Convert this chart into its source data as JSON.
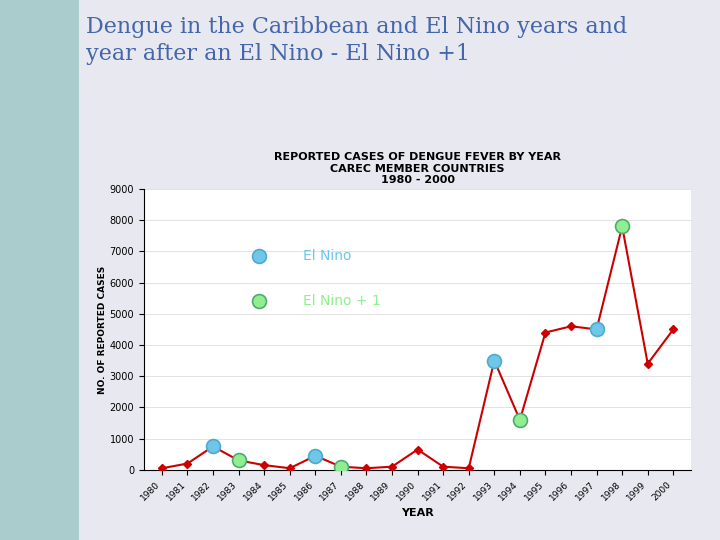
{
  "title_main": "Dengue in the Caribbean and El Nino years and\nyear after an El Nino - El Nino +1",
  "chart_title_line1": "REPORTED CASES OF DENGUE FEVER BY YEAR",
  "chart_title_line2": "CAREC MEMBER COUNTRIES",
  "chart_title_line3": "1980 - 2000",
  "xlabel": "YEAR",
  "ylabel": "NO. OF REPORTED CASES",
  "years": [
    1980,
    1981,
    1982,
    1983,
    1984,
    1985,
    1986,
    1987,
    1988,
    1989,
    1990,
    1991,
    1992,
    1993,
    1994,
    1995,
    1996,
    1997,
    1998,
    1999,
    2000
  ],
  "values": [
    50,
    200,
    750,
    300,
    150,
    50,
    450,
    100,
    50,
    100,
    650,
    100,
    50,
    3500,
    1600,
    4400,
    4600,
    4500,
    7800,
    3400,
    4500
  ],
  "el_nino_years": [
    1982,
    1986,
    1993,
    1997
  ],
  "el_nino_plus1_years": [
    1983,
    1987,
    1994,
    1998
  ],
  "el_nino_color": "#6EC6E8",
  "el_nino_plus1_color": "#90EE90",
  "el_nino_edge_color": "#50AACC",
  "el_nino_plus1_edge_color": "#50AA70",
  "line_color": "#CC0000",
  "dot_color": "#CC0000",
  "background_color": "#FFFFFF",
  "slide_bg_left_color": "#AACCCC",
  "slide_bg_right_color": "#E8E8F0",
  "ylim": [
    0,
    9000
  ],
  "yticks": [
    0,
    1000,
    2000,
    3000,
    4000,
    5000,
    6000,
    7000,
    8000,
    9000
  ],
  "legend_el_nino_label": "El Nino",
  "legend_el_nino_plus1_label": "El Nino + 1",
  "title_color": "#4466AA",
  "title_fontsize": 16,
  "chart_title_fontsize": 8
}
